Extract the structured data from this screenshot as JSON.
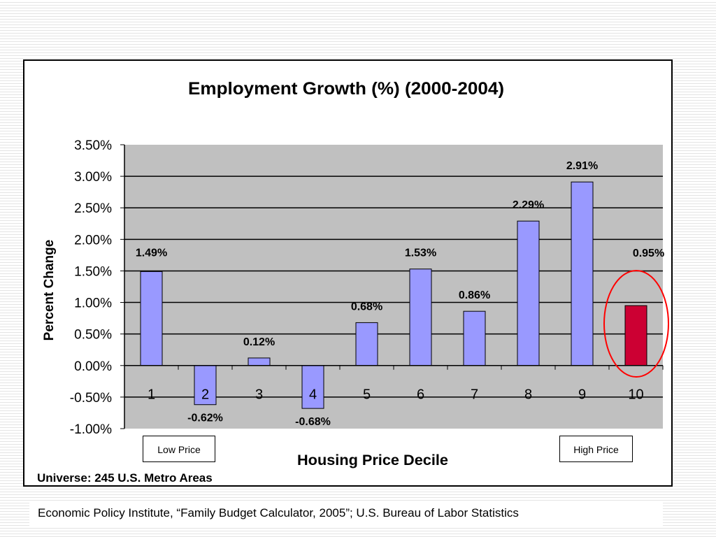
{
  "chart_data": {
    "type": "bar",
    "title": "Employment Growth (%) (2000-2004)",
    "xlabel": "Housing Price Decile",
    "ylabel": "Percent Change",
    "categories": [
      "1",
      "2",
      "3",
      "4",
      "5",
      "6",
      "7",
      "8",
      "9",
      "10"
    ],
    "values": [
      1.49,
      -0.62,
      0.12,
      -0.68,
      0.68,
      1.53,
      0.86,
      2.29,
      2.91,
      0.95
    ],
    "data_labels": [
      "1.49%",
      "-0.62%",
      "0.12%",
      "-0.68%",
      "0.68%",
      "1.53%",
      "0.86%",
      "2.29%",
      "2.91%",
      "0.95%"
    ],
    "ylim": [
      -1.0,
      3.5
    ],
    "yticks": [
      3.5,
      3.0,
      2.5,
      2.0,
      1.5,
      1.0,
      0.5,
      0.0,
      -0.5,
      -1.0
    ],
    "ytick_labels": [
      "3.50%",
      "3.00%",
      "2.50%",
      "2.00%",
      "1.50%",
      "1.00%",
      "0.50%",
      "0.00%",
      "-0.50%",
      "-1.00%"
    ],
    "grid": true,
    "highlight_index": 9,
    "colors": {
      "bar": "#9999ff",
      "highlight_bar": "#cc0033",
      "plot_background": "#c0c0c0",
      "circle": "#ff0000"
    },
    "annotations": {
      "low_price": "Low Price",
      "high_price": "High Price"
    }
  },
  "notes": {
    "universe": "Universe: 245 U.S. Metro Areas",
    "source": "Economic Policy Institute, “Family Budget Calculator, 2005”; U.S. Bureau of Labor Statistics"
  }
}
